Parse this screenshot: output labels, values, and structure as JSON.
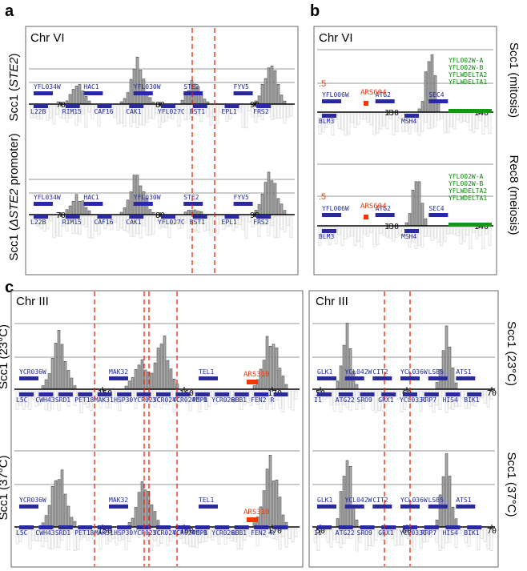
{
  "colors": {
    "bar": "#a9a9a9",
    "barStroke": "#333333",
    "gene": "#2a2aa0",
    "redGene": "#ff3300",
    "green": "#119911",
    "dash": "#ee2200",
    "grid": "#999999",
    "lowBar": "#cfcfcf"
  },
  "chart_data": [
    {
      "type": "bar",
      "panel": "a",
      "chromosome": "Chr VI",
      "track": "Scc1 (STE2)",
      "side_label_prefix": "Scc1 (",
      "side_label_italic": "STE2",
      "side_label_suffix": ")",
      "ticks": [
        "70",
        "80",
        "90"
      ],
      "genes_top": [
        "YFL034W",
        "HAC1",
        "YFL030W",
        "STE2",
        "FYV5"
      ],
      "genes_bottom": [
        "L22B",
        "RIM15",
        "CAF16",
        "CAK1",
        "YFL027C",
        "BST1",
        "EPL1",
        "FRS2"
      ],
      "peaks": [
        {
          "kb": 70.6,
          "value": 0.4
        },
        {
          "kb": 77.5,
          "value": 0.95
        },
        {
          "kb": 84.1,
          "value": 0.5
        },
        {
          "kb": 93.0,
          "value": 0.95
        }
      ]
    },
    {
      "type": "bar",
      "panel": "a",
      "chromosome": "",
      "track": "Scc1 (ΔSTE2 promoter)",
      "side_label_prefix": "Scc1 (",
      "side_label_italic": "ΔSTE2",
      "side_label_suffix": " promoter)",
      "ticks": [
        "70",
        "80",
        "90"
      ],
      "genes_top": [
        "YFL034W",
        "HAC1",
        "YFL030W",
        "STE2",
        "FYV5"
      ],
      "genes_bottom": [
        "L22B",
        "RIM15",
        "CAF16",
        "CAK1",
        "YFL027C",
        "BST1",
        "EPL1",
        "FRS2"
      ],
      "peaks": [
        {
          "kb": 70.6,
          "value": 0.4
        },
        {
          "kb": 77.5,
          "value": 0.95
        },
        {
          "kb": 84.1,
          "value": 0.12
        },
        {
          "kb": 93.0,
          "value": 0.95
        }
      ]
    },
    {
      "type": "bar",
      "panel": "b",
      "chromosome": "Chr VI",
      "track": "Scc1 (mitosis)",
      "side_label": "Scc1 (mitosis)",
      "ticks": [
        "130",
        "140"
      ],
      "half_label": ".5",
      "ars_label": "ARS604",
      "genes_top": [
        "YFL006W",
        "ATG2",
        "SEC4"
      ],
      "genes_green": [
        "YFL002W-A",
        "YFL002W-B",
        "YFLWDELTA2",
        "YFLWDELTA1"
      ],
      "genes_bottom": [
        "BLM3",
        "MSH4"
      ],
      "peaks": [
        {
          "kb": 134.5,
          "value": 1.0
        }
      ]
    },
    {
      "type": "bar",
      "panel": "b",
      "chromosome": "",
      "track": "Rec8 (meiosis)",
      "side_label": "Rec8 (meiosis)",
      "ticks": [
        "130",
        "140"
      ],
      "half_label": ".5",
      "ars_label": "ARS604",
      "genes_top": [
        "YFL006W",
        "ATG2",
        "SEC4"
      ],
      "genes_green": [
        "YFL002W-A",
        "YFL002W-B",
        "YFLWDELTA2",
        "YFLWDELTA1"
      ],
      "genes_bottom": [
        "BLM3",
        "MSH4"
      ],
      "peaks": [
        {
          "kb": 132.5,
          "value": 0.85
        }
      ]
    },
    {
      "type": "bar",
      "panel": "c",
      "chromosome": "Chr III",
      "track": "Scc1 (23°C) left",
      "side_label": "Scc1 (23°C)",
      "ticks": [
        "150",
        "160",
        "170"
      ],
      "ars_label": "ARS310",
      "genes_top": [
        "YCR036W",
        "MAK32",
        "TEL1"
      ],
      "genes_bottom": [
        "L5C",
        "CWH43",
        "SRD1",
        "PET18",
        "MAK31",
        "HSP30",
        "YCR023C",
        "YCR024C",
        "YCR024C-B",
        "PMP1",
        "YCR026C",
        "RHB1",
        "FEN2",
        "R"
      ],
      "peaks": [
        {
          "kb": 143.5,
          "value": 0.8
        },
        {
          "kb": 153.8,
          "value": 0.45
        },
        {
          "kb": 156.5,
          "value": 0.75
        },
        {
          "kb": 170.2,
          "value": 0.85
        }
      ]
    },
    {
      "type": "bar",
      "panel": "c",
      "chromosome": "",
      "track": "Scc1 (37°C) left",
      "side_label": "Scc1 (37°C)",
      "ticks": [
        "150",
        "160",
        "170"
      ],
      "ars_label": "ARS310",
      "genes_top": [
        "YCR036W",
        "MAK32",
        "TEL1"
      ],
      "genes_bottom": [
        "L5C",
        "CWH43",
        "SRD1",
        "PET18",
        "MAK31",
        "HSP30",
        "YCR023C",
        "YCR024C",
        "YCR024C-B",
        "PMP1",
        "YCR026C",
        "RHB1",
        "FEN2",
        "R"
      ],
      "peaks": [
        {
          "kb": 143.5,
          "value": 0.75
        },
        {
          "kb": 154.3,
          "value": 0.6
        },
        {
          "kb": 170.2,
          "value": 0.85
        }
      ]
    },
    {
      "type": "bar",
      "panel": "c",
      "chromosome": "Chr III",
      "track": "Scc1 (23°C) right",
      "side_label": "Scc1 (23°C)",
      "ticks": [
        "50",
        "60",
        "70"
      ],
      "genes_top": [
        "GLK1",
        "YCL042W",
        "CIT2",
        "YCL036W",
        "LSB5",
        "ATS1"
      ],
      "genes_bottom": [
        "I1",
        "ATG22",
        "SRO9",
        "GRX1",
        "YCL033C",
        "RRP7",
        "HIS4",
        "BIK1"
      ],
      "peaks": [
        {
          "kb": 53.0,
          "value": 0.95
        },
        {
          "kb": 65.0,
          "value": 0.95
        }
      ]
    },
    {
      "type": "bar",
      "panel": "c",
      "chromosome": "",
      "track": "Scc1 (37°C) right",
      "side_label": "Scc1 (37°C)",
      "ticks": [
        "50",
        "60",
        "70"
      ],
      "genes_top": [
        "GLK1",
        "YCL042W",
        "CIT2",
        "YCL036W",
        "LSB5",
        "ATS1"
      ],
      "genes_bottom": [
        "I1",
        "ATG22",
        "SRO9",
        "GRX1",
        "YCL033C",
        "RRP7",
        "HIS4",
        "BIK1"
      ],
      "peaks": [
        {
          "kb": 53.0,
          "value": 0.95
        },
        {
          "kb": 65.0,
          "value": 0.95
        }
      ]
    }
  ],
  "labels": {
    "a": "a",
    "b": "b",
    "c": "c",
    "chr_vi_a": "Chr VI",
    "chr_vi_b": "Chr VI",
    "chr_iii_left": "Chr III",
    "chr_iii_right": "Chr III"
  }
}
